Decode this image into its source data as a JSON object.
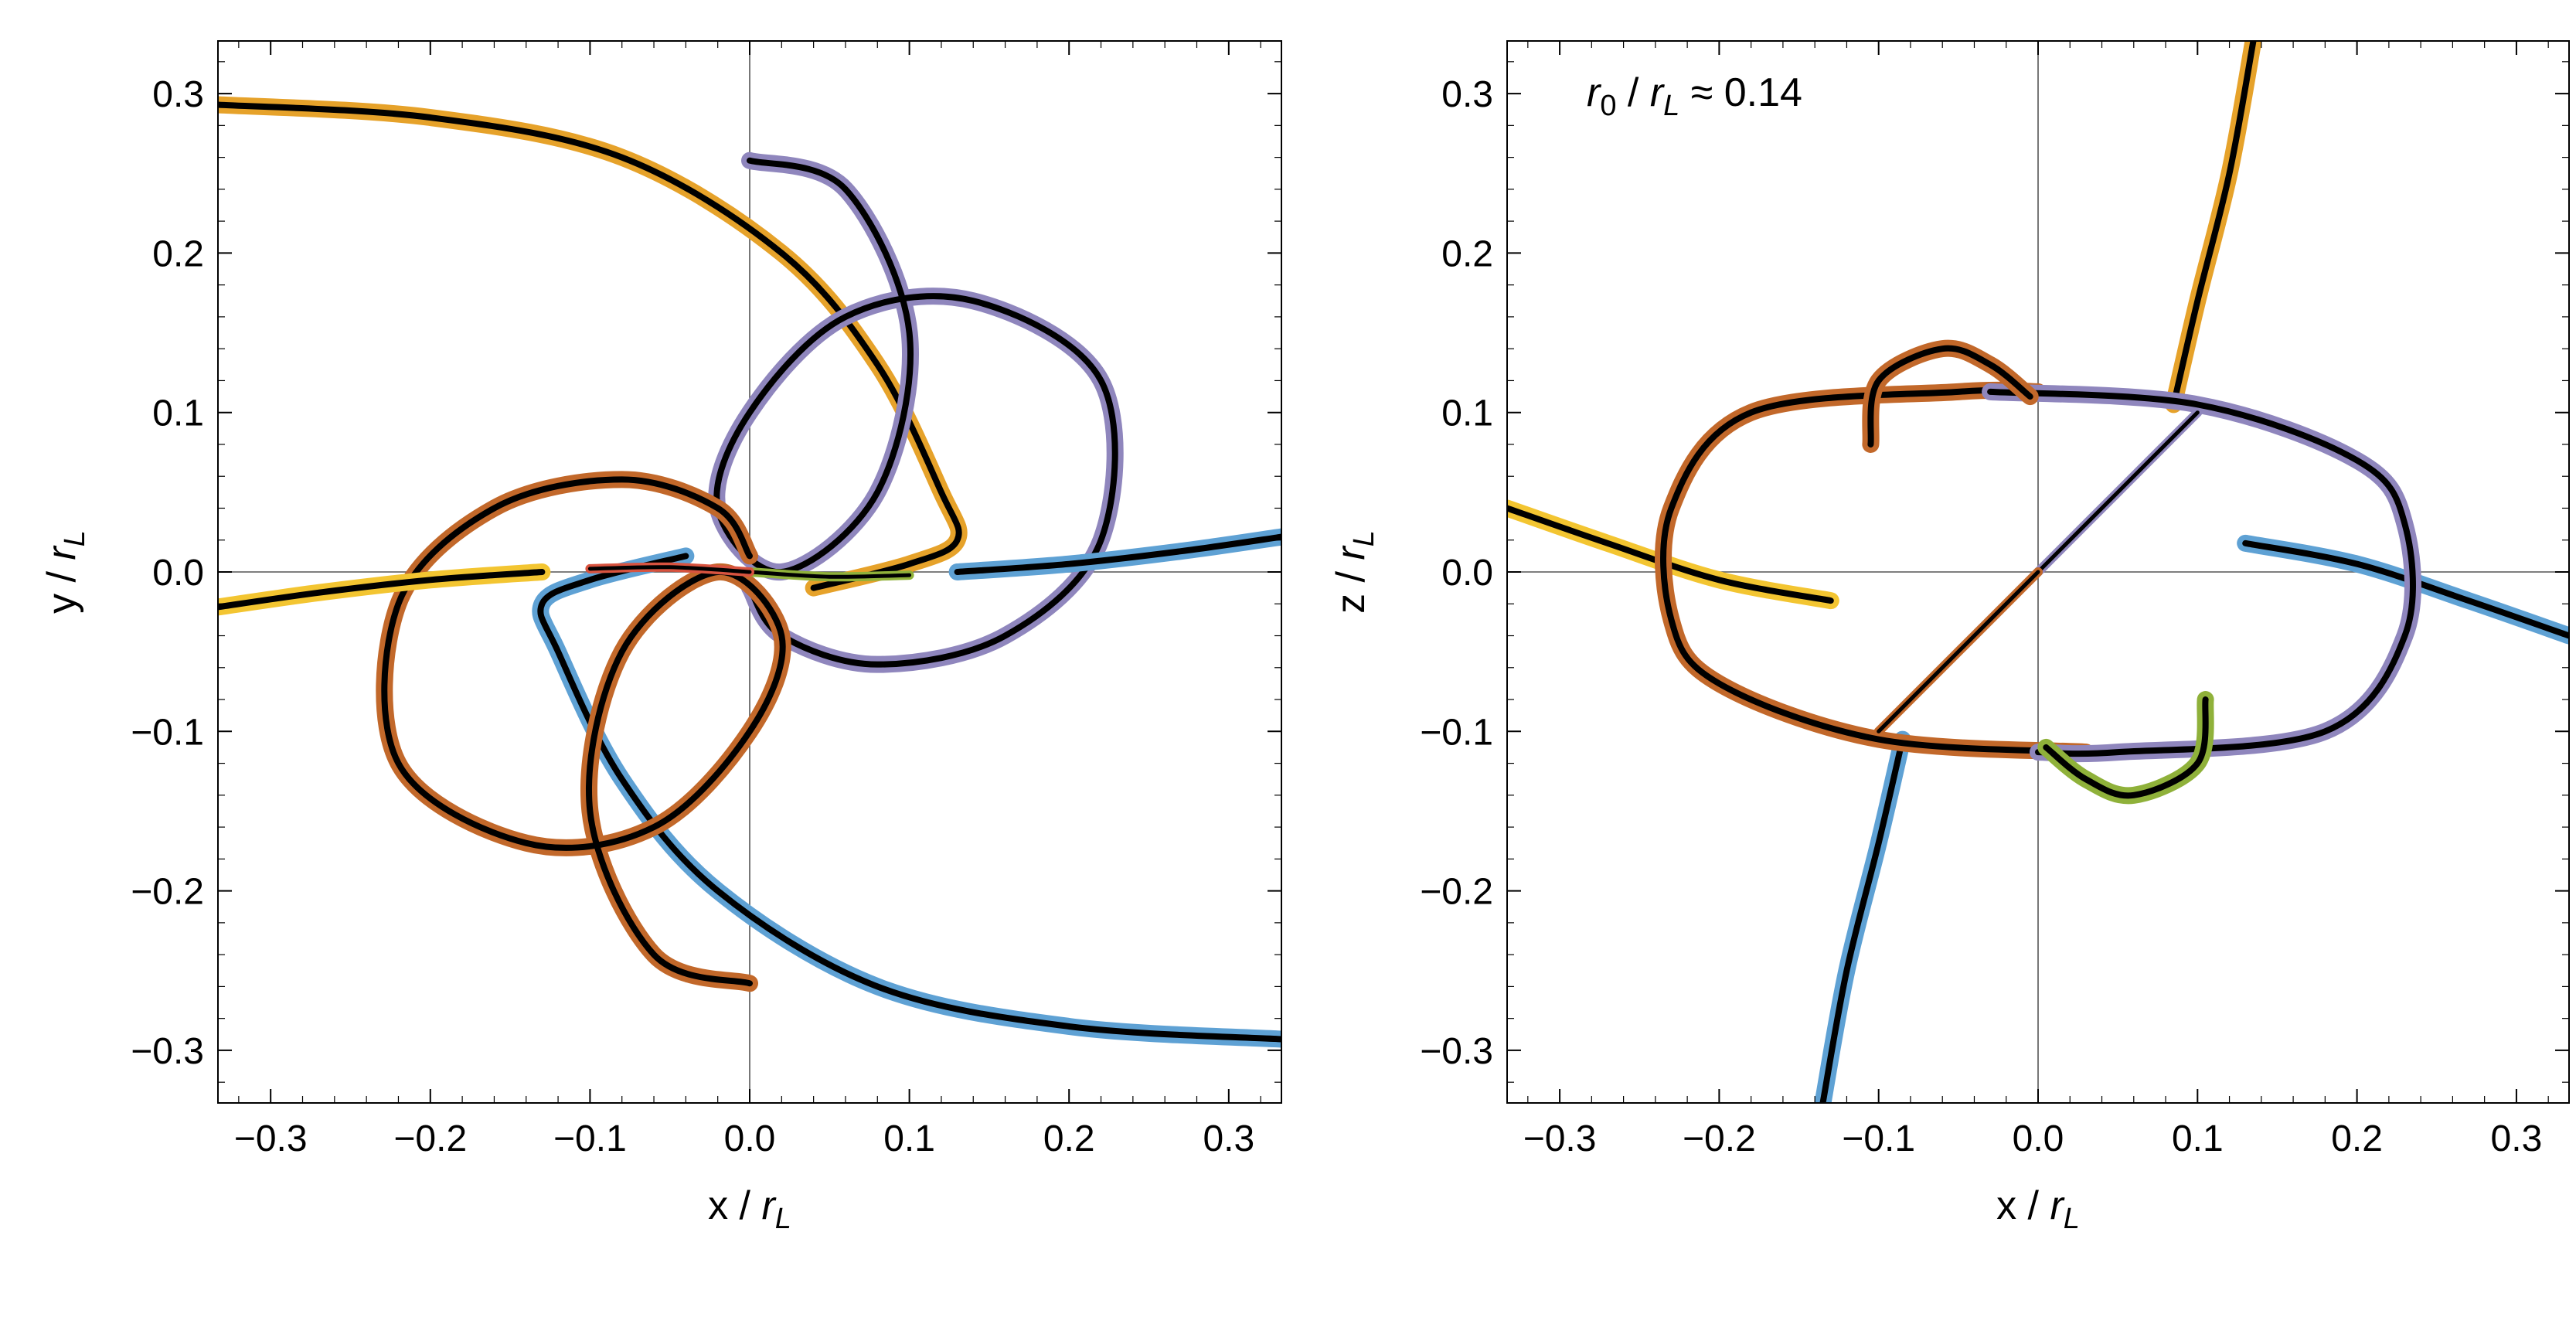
{
  "chart_data": [
    {
      "type": "line",
      "panel": "left",
      "xlabel": "x / r_L",
      "ylabel": "y / r_L",
      "xlim": [
        -0.333,
        0.333
      ],
      "ylim": [
        -0.333,
        0.333
      ],
      "xticks": [
        "−0.3",
        "−0.2",
        "−0.1",
        "0.0",
        "0.1",
        "0.2",
        "0.3"
      ],
      "yticks": [
        "−0.3",
        "−0.2",
        "−0.1",
        "0.0",
        "0.1",
        "0.2",
        "0.3"
      ],
      "tick_values": [
        -0.3,
        -0.2,
        -0.1,
        0.0,
        0.1,
        0.2,
        0.3
      ],
      "series": [
        {
          "color": "#e6a22a",
          "width": "thick",
          "points": [
            [
              -0.333,
              0.293
            ],
            [
              -0.2,
              0.285
            ],
            [
              -0.08,
              0.26
            ],
            [
              0.02,
              0.2
            ],
            [
              0.08,
              0.13
            ],
            [
              0.12,
              0.05
            ],
            [
              0.13,
              0.02
            ],
            [
              0.1,
              0.005
            ],
            [
              0.04,
              -0.01
            ]
          ]
        },
        {
          "color": "#5ea1d4",
          "width": "thick",
          "points": [
            [
              0.333,
              -0.293
            ],
            [
              0.2,
              -0.285
            ],
            [
              0.08,
              -0.26
            ],
            [
              -0.02,
              -0.2
            ],
            [
              -0.08,
              -0.13
            ],
            [
              -0.12,
              -0.05
            ],
            [
              -0.13,
              -0.02
            ],
            [
              -0.1,
              -0.005
            ],
            [
              -0.04,
              0.01
            ]
          ]
        },
        {
          "color": "#8f86bd",
          "width": "thick",
          "points": [
            [
              0.0,
              0.258
            ],
            [
              0.06,
              0.24
            ],
            [
              0.1,
              0.15
            ],
            [
              0.08,
              0.05
            ],
            [
              0.02,
              0.0
            ],
            [
              -0.02,
              0.04
            ],
            [
              0.0,
              0.1
            ],
            [
              0.06,
              0.16
            ],
            [
              0.14,
              0.17
            ],
            [
              0.22,
              0.12
            ],
            [
              0.22,
              0.02
            ],
            [
              0.16,
              -0.04
            ],
            [
              0.08,
              -0.058
            ],
            [
              0.02,
              -0.04
            ],
            [
              0.0,
              -0.01
            ]
          ]
        },
        {
          "color": "#c2682a",
          "width": "thick",
          "points": [
            [
              0.0,
              -0.258
            ],
            [
              -0.06,
              -0.24
            ],
            [
              -0.1,
              -0.15
            ],
            [
              -0.08,
              -0.05
            ],
            [
              -0.02,
              0.0
            ],
            [
              0.02,
              -0.04
            ],
            [
              0.0,
              -0.1
            ],
            [
              -0.06,
              -0.16
            ],
            [
              -0.14,
              -0.17
            ],
            [
              -0.22,
              -0.12
            ],
            [
              -0.22,
              -0.02
            ],
            [
              -0.16,
              0.04
            ],
            [
              -0.08,
              0.058
            ],
            [
              -0.02,
              0.04
            ],
            [
              0.0,
              0.01
            ]
          ]
        },
        {
          "color": "#5ea1d4",
          "width": "thick",
          "points": [
            [
              0.13,
              0.0
            ],
            [
              0.2,
              0.005
            ],
            [
              0.27,
              0.013
            ],
            [
              0.333,
              0.022
            ]
          ]
        },
        {
          "color": "#f3c531",
          "width": "thick",
          "points": [
            [
              -0.13,
              0.0
            ],
            [
              -0.2,
              -0.005
            ],
            [
              -0.27,
              -0.013
            ],
            [
              -0.333,
              -0.022
            ]
          ]
        },
        {
          "color": "#8fb13a",
          "width": "thin",
          "points": [
            [
              0.0,
              0.0
            ],
            [
              0.05,
              -0.003
            ],
            [
              0.1,
              -0.002
            ]
          ]
        },
        {
          "color": "#d8533f",
          "width": "thin",
          "points": [
            [
              0.0,
              0.0
            ],
            [
              -0.05,
              0.003
            ],
            [
              -0.1,
              0.002
            ]
          ]
        }
      ]
    },
    {
      "type": "line",
      "panel": "right",
      "xlabel": "x / r_L",
      "ylabel": "z / r_L",
      "annotation": "r_0 / r_L ≈ 0.14",
      "xlim": [
        -0.333,
        0.333
      ],
      "ylim": [
        -0.333,
        0.333
      ],
      "xticks": [
        "−0.3",
        "−0.2",
        "−0.1",
        "0.0",
        "0.1",
        "0.2",
        "0.3"
      ],
      "yticks": [
        "−0.3",
        "−0.2",
        "−0.1",
        "0.0",
        "0.1",
        "0.2",
        "0.3"
      ],
      "tick_values": [
        -0.3,
        -0.2,
        -0.1,
        0.0,
        0.1,
        0.2,
        0.3
      ],
      "series": [
        {
          "color": "#e6a22a",
          "width": "thick",
          "points": [
            [
              0.135,
              0.333
            ],
            [
              0.12,
              0.25
            ],
            [
              0.1,
              0.17
            ],
            [
              0.085,
              0.105
            ]
          ]
        },
        {
          "color": "#5ea1d4",
          "width": "thick",
          "points": [
            [
              -0.135,
              -0.333
            ],
            [
              -0.12,
              -0.25
            ],
            [
              -0.1,
              -0.17
            ],
            [
              -0.085,
              -0.105
            ]
          ]
        },
        {
          "color": "#f3c531",
          "width": "thick",
          "points": [
            [
              -0.333,
              0.04
            ],
            [
              -0.27,
              0.018
            ],
            [
              -0.2,
              -0.005
            ],
            [
              -0.13,
              -0.018
            ]
          ]
        },
        {
          "color": "#5ea1d4",
          "width": "thick",
          "points": [
            [
              0.13,
              0.018
            ],
            [
              0.2,
              0.005
            ],
            [
              0.27,
              -0.018
            ],
            [
              0.333,
              -0.04
            ]
          ]
        },
        {
          "color": "#c2682a",
          "width": "thick",
          "points": [
            [
              0.03,
              -0.113
            ],
            [
              -0.1,
              -0.105
            ],
            [
              -0.2,
              -0.07
            ],
            [
              -0.23,
              -0.03
            ],
            [
              -0.23,
              0.04
            ],
            [
              -0.18,
              0.1
            ],
            [
              -0.05,
              0.113
            ],
            [
              0.0,
              0.113
            ]
          ]
        },
        {
          "color": "#8f86bd",
          "width": "thick",
          "points": [
            [
              -0.03,
              0.113
            ],
            [
              0.1,
              0.105
            ],
            [
              0.2,
              0.07
            ],
            [
              0.23,
              0.03
            ],
            [
              0.23,
              -0.04
            ],
            [
              0.18,
              -0.1
            ],
            [
              0.05,
              -0.113
            ],
            [
              0.0,
              -0.113
            ]
          ]
        },
        {
          "color": "#8f86bd",
          "width": "thin",
          "points": [
            [
              0.0,
              0.0
            ],
            [
              0.05,
              0.05
            ],
            [
              0.1,
              0.1
            ]
          ]
        },
        {
          "color": "#c2682a",
          "width": "thin",
          "points": [
            [
              0.0,
              0.0
            ],
            [
              -0.05,
              -0.05
            ],
            [
              -0.1,
              -0.1
            ]
          ]
        },
        {
          "color": "#c2682a",
          "width": "thick",
          "points": [
            [
              -0.105,
              0.08
            ],
            [
              -0.1,
              0.12
            ],
            [
              -0.06,
              0.14
            ],
            [
              -0.03,
              0.13
            ],
            [
              -0.005,
              0.11
            ]
          ]
        },
        {
          "color": "#8fb13a",
          "width": "thick",
          "points": [
            [
              0.105,
              -0.08
            ],
            [
              0.1,
              -0.12
            ],
            [
              0.06,
              -0.14
            ],
            [
              0.03,
              -0.13
            ],
            [
              0.005,
              -0.11
            ]
          ]
        }
      ]
    }
  ]
}
